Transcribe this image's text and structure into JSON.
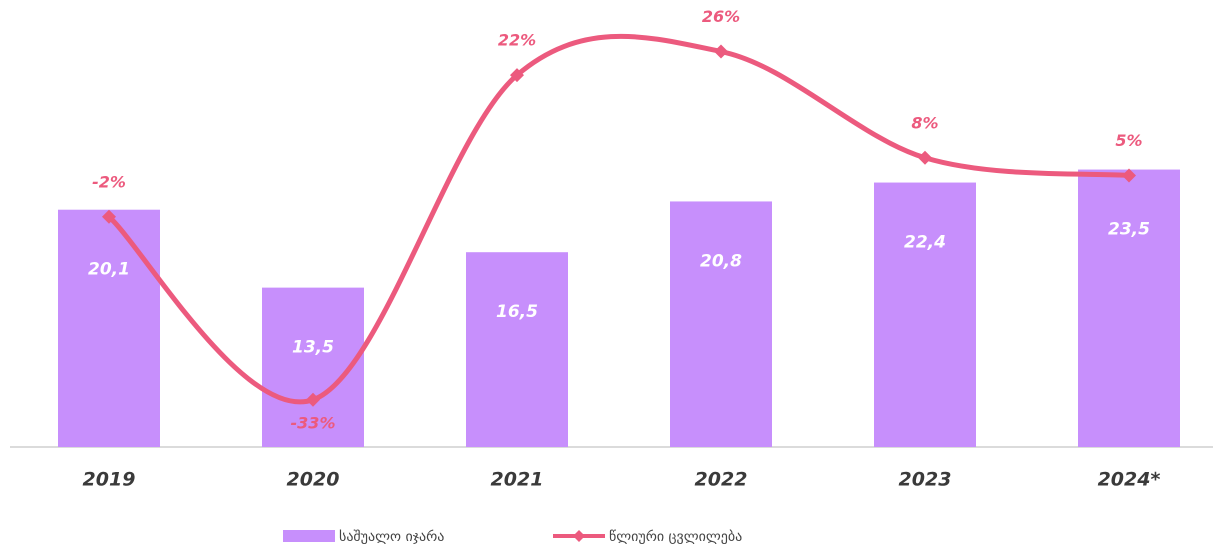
{
  "chart_data": {
    "type": "bar-line",
    "categories": [
      "2019",
      "2020",
      "2021",
      "2022",
      "2023",
      "2024*"
    ],
    "series": [
      {
        "name": "საშუალო იჯარა",
        "type": "bar",
        "color": "#c78ffc",
        "values": [
          20.1,
          13.5,
          16.5,
          20.8,
          22.4,
          23.5
        ],
        "value_labels": [
          "20,1",
          "13,5",
          "16,5",
          "20,8",
          "22,4",
          "23,5"
        ]
      },
      {
        "name": "წლიური ცვლილება",
        "type": "line",
        "axis": "y2",
        "color": "#ec5a7e",
        "values": [
          -2,
          -33,
          22,
          26,
          8,
          5
        ],
        "value_labels": [
          "-2%",
          "-33%",
          "22%",
          "26%",
          "8%",
          "5%"
        ]
      }
    ],
    "ylim": [
      0,
      36
    ],
    "y2lim": [
      -41,
      31
    ],
    "legend": "bottom"
  }
}
